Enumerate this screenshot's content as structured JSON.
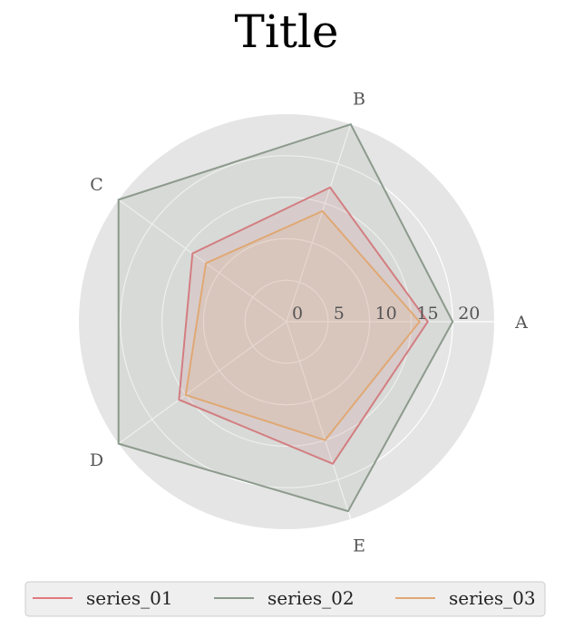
{
  "chart_data": {
    "type": "radar",
    "title": "Title",
    "categories": [
      "A",
      "B",
      "C",
      "D",
      "E"
    ],
    "radial_ticks": [
      "0",
      "5",
      "10",
      "15",
      "20"
    ],
    "rlim": [
      0,
      25
    ],
    "grid": true,
    "legend_placement": "bottom",
    "series": [
      {
        "name": "series_01",
        "color": "#e07a7f",
        "values": [
          17,
          17,
          14,
          16,
          18
        ]
      },
      {
        "name": "series_02",
        "color": "#8c9a8c",
        "values": [
          20,
          25,
          25,
          25,
          24
        ]
      },
      {
        "name": "series_03",
        "color": "#e0a874",
        "values": [
          16,
          14,
          12,
          15,
          15
        ]
      }
    ]
  }
}
